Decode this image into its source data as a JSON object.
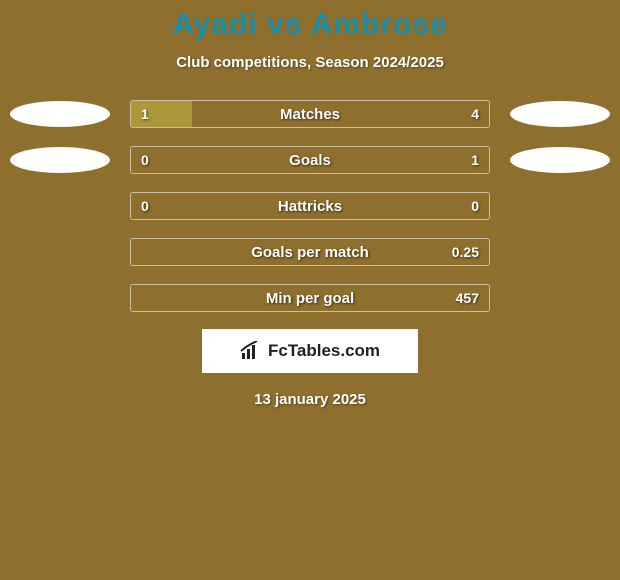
{
  "background_color": "#8f6f2e",
  "title": {
    "text": "Ayadi vs Ambrose",
    "color": "#1a8ea8",
    "fontsize": 30
  },
  "subtitle": {
    "text": "Club competitions, Season 2024/2025",
    "color": "#ffffff",
    "fontsize": 15
  },
  "left_badge_color": "#ffffff",
  "right_badge_color": "#ffffff",
  "left_fill_color": "#aa9839",
  "right_fill_color": "#aa9839",
  "track_border_color": "rgba(255,255,255,0.55)",
  "stats": [
    {
      "label": "Matches",
      "left_val": "1",
      "right_val": "4",
      "left_pct": 17,
      "right_pct": 0,
      "show_left_badge": true,
      "show_right_badge": true
    },
    {
      "label": "Goals",
      "left_val": "0",
      "right_val": "1",
      "left_pct": 0,
      "right_pct": 0,
      "show_left_badge": true,
      "show_right_badge": true
    },
    {
      "label": "Hattricks",
      "left_val": "0",
      "right_val": "0",
      "left_pct": 0,
      "right_pct": 0,
      "show_left_badge": false,
      "show_right_badge": false
    },
    {
      "label": "Goals per match",
      "left_val": "",
      "right_val": "0.25",
      "left_pct": 0,
      "right_pct": 0,
      "show_left_badge": false,
      "show_right_badge": false
    },
    {
      "label": "Min per goal",
      "left_val": "",
      "right_val": "457",
      "left_pct": 0,
      "right_pct": 0,
      "show_left_badge": false,
      "show_right_badge": false
    }
  ],
  "brand": {
    "text": "FcTables.com",
    "icon_name": "chart-icon"
  },
  "date": "13 january 2025"
}
